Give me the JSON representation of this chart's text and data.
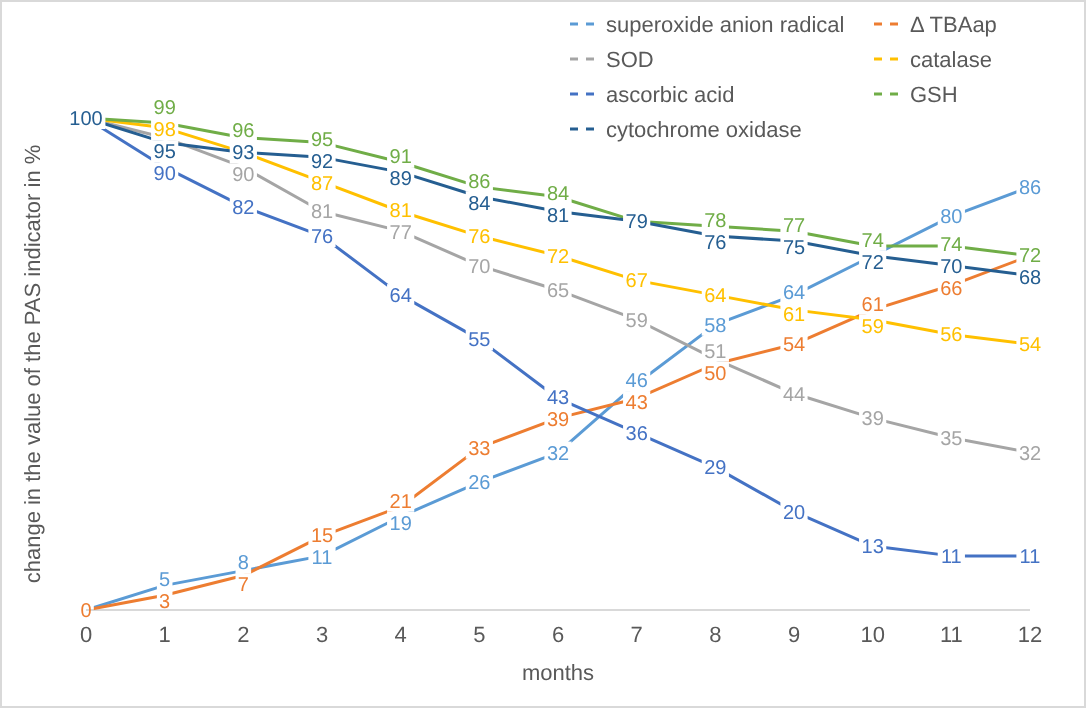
{
  "chart_data": {
    "type": "line",
    "xlabel": "months",
    "ylabel": "change in the value of the PAS indicator in %",
    "x": [
      0,
      1,
      2,
      3,
      4,
      5,
      6,
      7,
      8,
      9,
      10,
      11,
      12
    ],
    "xlim": [
      0,
      12
    ],
    "xticks": [
      0,
      1,
      2,
      3,
      4,
      5,
      6,
      7,
      8,
      9,
      10,
      11,
      12
    ],
    "legend": "top right",
    "grid": false,
    "line_style": "solid",
    "series": [
      {
        "name": "superoxide anion radical",
        "color": "#5b9bd5",
        "values": [
          0,
          5,
          8,
          11,
          19,
          26,
          32,
          46,
          58,
          64,
          72,
          80,
          86
        ],
        "value_labels": [
          null,
          "5",
          "8",
          "11",
          "19",
          "26",
          "32",
          "46",
          "58",
          "64",
          null,
          "80",
          "86"
        ]
      },
      {
        "name": "Δ TBAap",
        "color": "#ed7d31",
        "values": [
          0,
          3,
          7,
          15,
          21,
          33,
          39,
          43,
          50,
          54,
          61,
          66,
          72
        ],
        "value_labels": [
          "0",
          "3",
          "7",
          "15",
          "21",
          "33",
          "39",
          "43",
          "50",
          "54",
          "61",
          "66",
          null
        ]
      },
      {
        "name": "SOD",
        "color": "#a5a5a5",
        "values": [
          100,
          96,
          90,
          81,
          77,
          70,
          65,
          59,
          51,
          44,
          39,
          35,
          32
        ],
        "value_labels": [
          null,
          null,
          "90",
          "81",
          "77",
          "70",
          "65",
          "59",
          "51",
          "44",
          "39",
          "35",
          "32"
        ]
      },
      {
        "name": "catalase",
        "color": "#ffc000",
        "values": [
          100,
          98,
          93,
          87,
          81,
          76,
          72,
          67,
          64,
          61,
          59,
          56,
          54
        ],
        "value_labels": [
          null,
          "98",
          null,
          "87",
          "81",
          "76",
          "72",
          "67",
          "64",
          "61",
          "59",
          "56",
          "54"
        ]
      },
      {
        "name": "ascorbic acid",
        "color": "#4472c4",
        "values": [
          100,
          90,
          82,
          76,
          64,
          55,
          43,
          36,
          29,
          20,
          13,
          11,
          11
        ],
        "value_labels": [
          null,
          "90",
          "82",
          "76",
          "64",
          "55",
          "43",
          "36",
          "29",
          "20",
          "13",
          "11",
          "11"
        ]
      },
      {
        "name": "GSH",
        "color": "#70ad47",
        "values": [
          100,
          99,
          96,
          95,
          91,
          86,
          84,
          79,
          78,
          77,
          74,
          74,
          72
        ],
        "value_labels": [
          null,
          "99",
          "96",
          "95",
          "91",
          "86",
          "84",
          null,
          "78",
          "77",
          "74",
          "74",
          "72"
        ]
      },
      {
        "name": "cytochrome oxidase",
        "color": "#255e91",
        "values": [
          100,
          95,
          93,
          92,
          89,
          84,
          81,
          79,
          76,
          75,
          72,
          70,
          68
        ],
        "value_labels": [
          "100",
          "95",
          "93",
          "92",
          "89",
          "84",
          "81",
          "79",
          "76",
          "75",
          "72",
          "70",
          "68"
        ]
      }
    ]
  }
}
